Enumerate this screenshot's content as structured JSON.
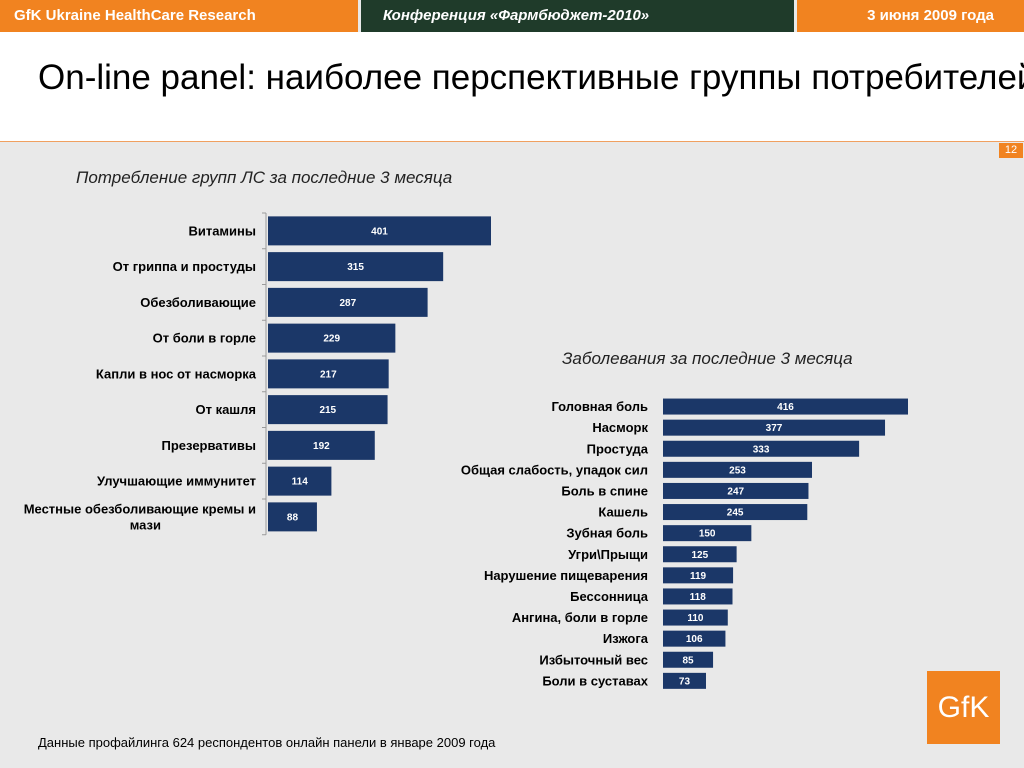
{
  "header": {
    "left": "GfK Ukraine HealthCare Research",
    "middle": "Конференция «Фармбюджет-2010»",
    "right": "3 июня 2009 года"
  },
  "title": "On-line panel: наиболее перспективные группы потребителей",
  "page_number": "12",
  "footnote": "Данные профайлинга 624 респондентов онлайн панели в январе 2009 года",
  "logo_text": "GfK",
  "colors": {
    "bar": "#1b3768",
    "accent": "#f18320",
    "header_dark": "#1f3b2a"
  },
  "chart_data": [
    {
      "type": "bar",
      "orientation": "horizontal",
      "title": "Потребление групп ЛС за последние 3 месяца",
      "categories": [
        "Витамины",
        "От гриппа и простуды",
        "Обезболивающие",
        "От боли в горле",
        "Капли в нос от насморка",
        "От кашля",
        "Презервативы",
        "Улучшающие иммунитет",
        "Местные обезболивающие кремы и мази"
      ],
      "values": [
        401,
        315,
        287,
        229,
        217,
        215,
        192,
        114,
        88
      ],
      "data_labels": true,
      "grid": false
    },
    {
      "type": "bar",
      "orientation": "horizontal",
      "title": "Заболевания за последние 3 месяца",
      "categories": [
        "Головная  боль",
        "Насморк",
        "Простуда",
        "Общая слабость, упадок сил",
        "Боль в спине",
        "Кашель",
        "Зубная боль",
        "Угри\\Прыщи",
        "Нарушение пищеварения",
        "Бессонница",
        "Ангина, боли  в горле",
        "Изжога",
        "Избыточный вес",
        "Боли в суставах"
      ],
      "values": [
        416,
        377,
        333,
        253,
        247,
        245,
        150,
        125,
        119,
        118,
        110,
        106,
        85,
        73
      ],
      "data_labels": true,
      "grid": false
    }
  ]
}
